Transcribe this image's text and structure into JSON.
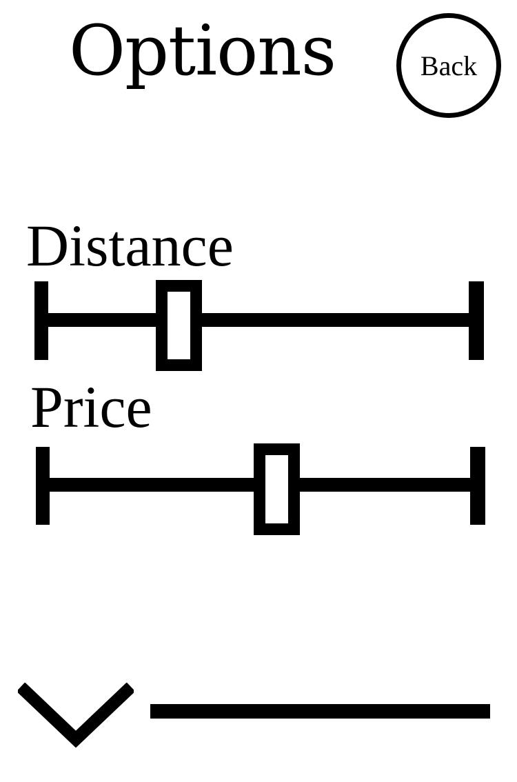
{
  "header": {
    "title": "Options",
    "back_label": "Back"
  },
  "filters": {
    "distance": {
      "label": "Distance",
      "value_fraction": 0.31
    },
    "price": {
      "label": "Price",
      "value_fraction": 0.54
    }
  },
  "footer": {
    "toggle_icon": "chevron-down-icon",
    "bar": "divider"
  },
  "colors": {
    "foreground": "#000000",
    "background": "#ffffff"
  }
}
